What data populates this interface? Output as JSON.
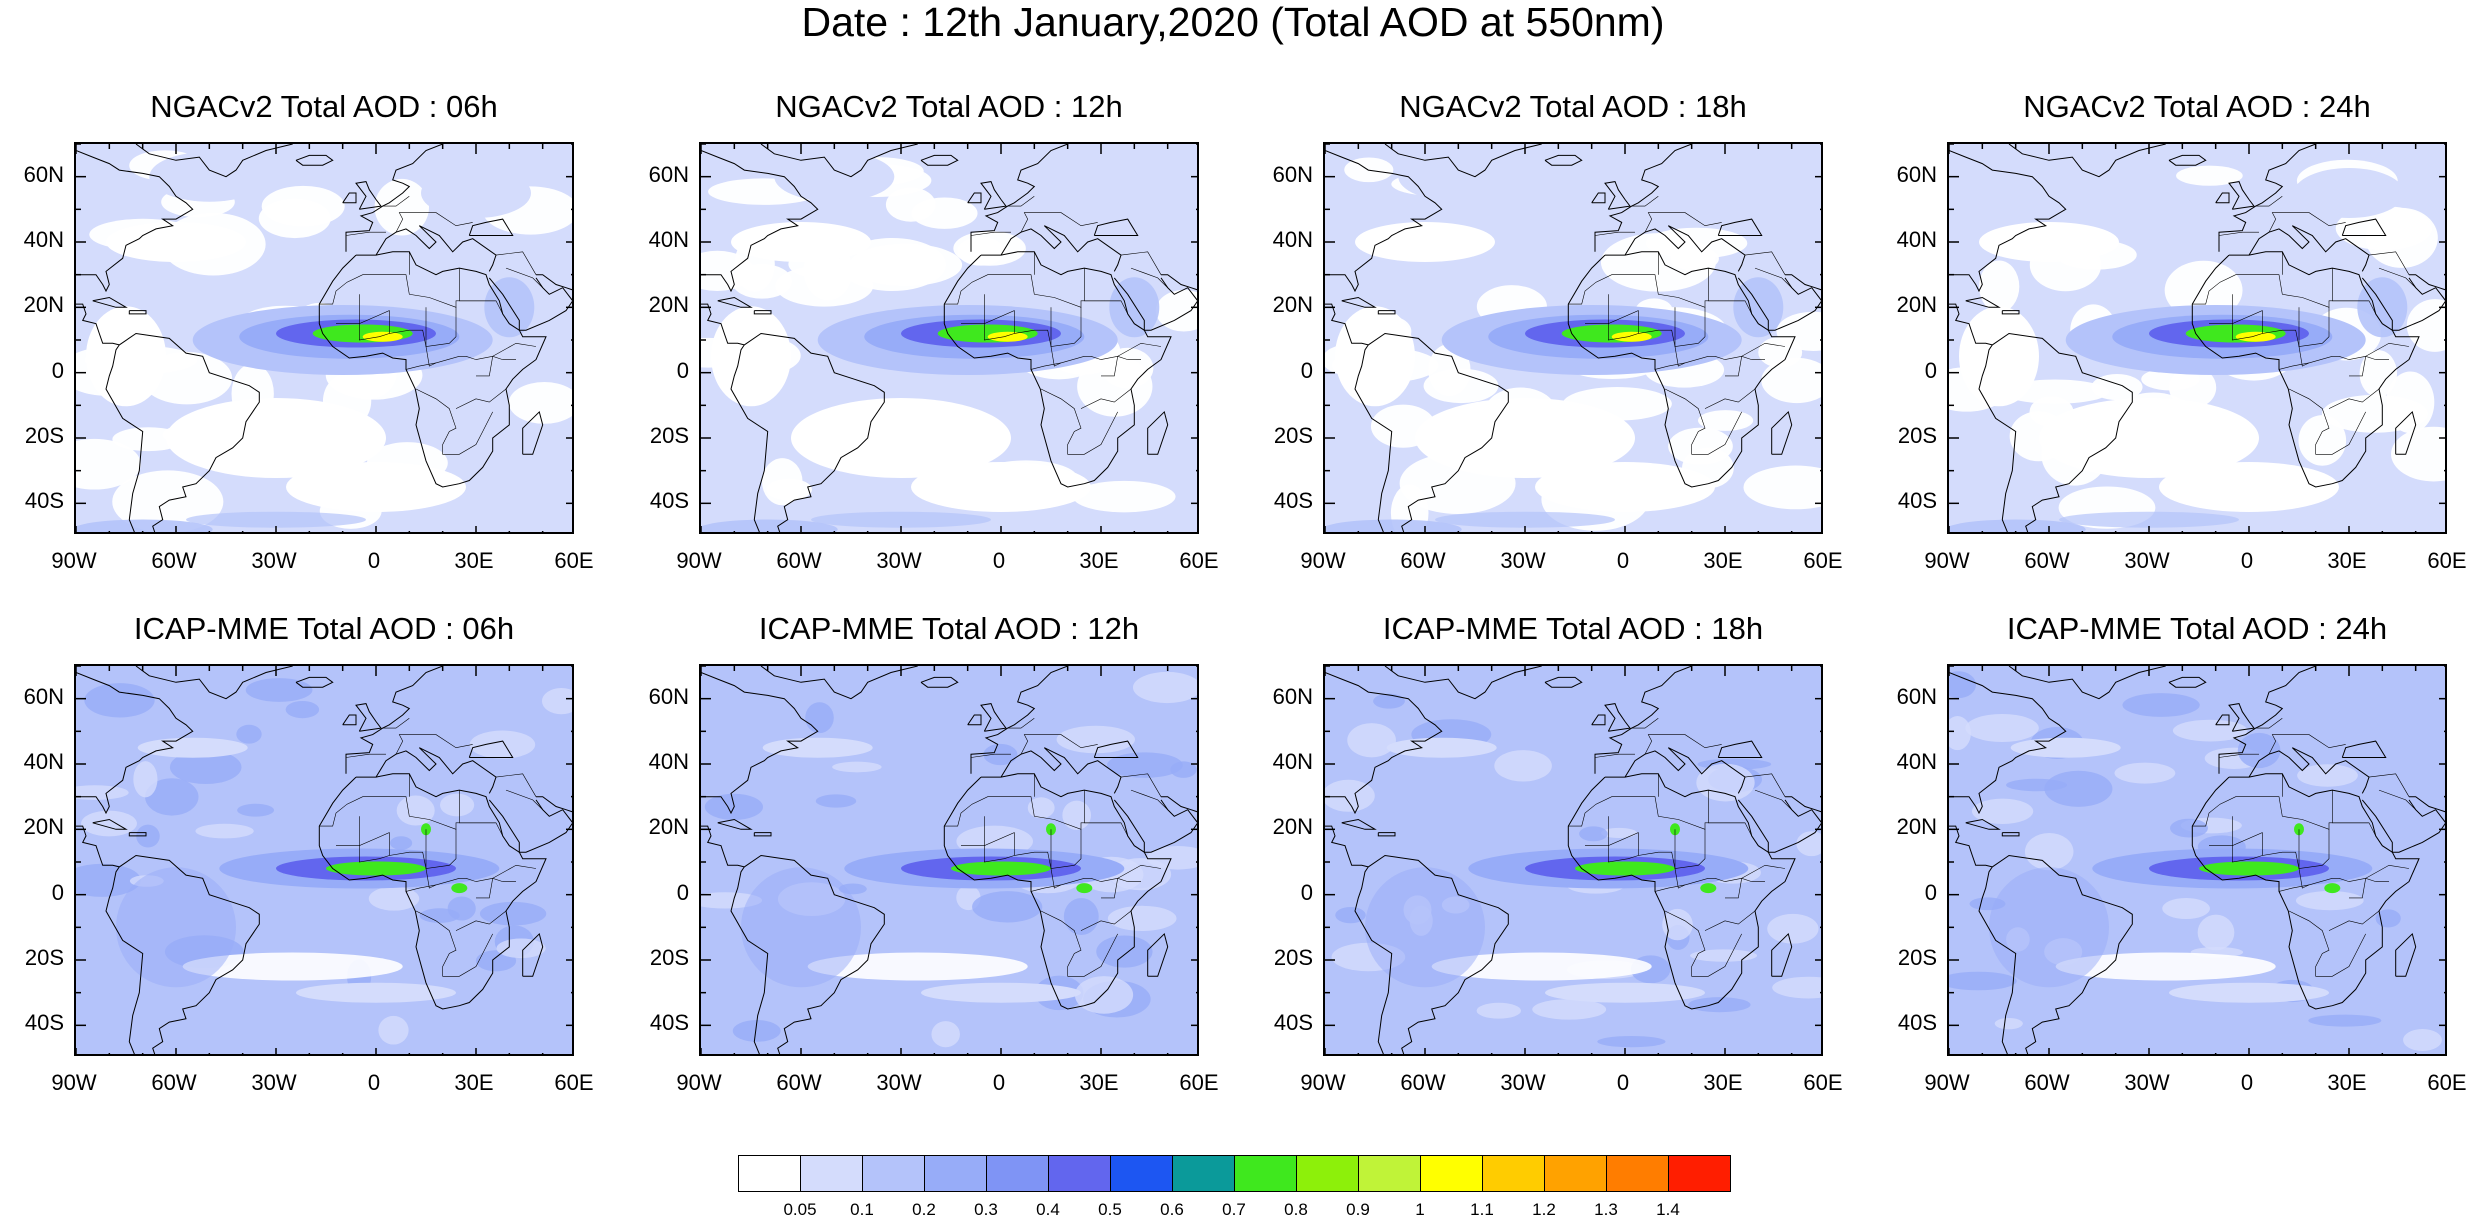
{
  "title": "Date : 12th January,2020 (Total AOD at 550nm)",
  "rows": [
    {
      "model": "NGACv2",
      "panels": [
        {
          "title": "NGACv2 Total AOD : 06h"
        },
        {
          "title": "NGACv2 Total AOD : 12h"
        },
        {
          "title": "NGACv2 Total AOD : 18h"
        },
        {
          "title": "NGACv2 Total AOD : 24h"
        }
      ]
    },
    {
      "model": "ICAP-MME",
      "panels": [
        {
          "title": "ICAP-MME Total AOD : 06h"
        },
        {
          "title": "ICAP-MME Total AOD : 12h"
        },
        {
          "title": "ICAP-MME Total AOD : 18h"
        },
        {
          "title": "ICAP-MME Total AOD : 24h"
        }
      ]
    }
  ],
  "map_extent": {
    "lon": [
      -90,
      60
    ],
    "lat": [
      -50,
      70
    ]
  },
  "lat_labels": [
    "60N",
    "40N",
    "20N",
    "0",
    "20S",
    "40S"
  ],
  "lat_values": [
    60,
    40,
    20,
    0,
    -20,
    -40
  ],
  "lon_labels": [
    "90W",
    "60W",
    "30W",
    "0",
    "30E",
    "60E"
  ],
  "lon_values": [
    -90,
    -60,
    -30,
    0,
    30,
    60
  ],
  "colorbar": {
    "labels": [
      "0.05",
      "0.1",
      "0.2",
      "0.3",
      "0.4",
      "0.5",
      "0.6",
      "0.7",
      "0.8",
      "0.9",
      "1",
      "1.1",
      "1.2",
      "1.3",
      "1.4"
    ],
    "colors": [
      "#ffffff",
      "#d4dcfc",
      "#b4c3fa",
      "#97acf8",
      "#7f94f5",
      "#6266ee",
      "#1d56f2",
      "#0b9a9a",
      "#3fe81e",
      "#8df00a",
      "#c0f338",
      "#ffff00",
      "#ffcc00",
      "#ffa200",
      "#ff7d00",
      "#ff1e00"
    ]
  }
}
